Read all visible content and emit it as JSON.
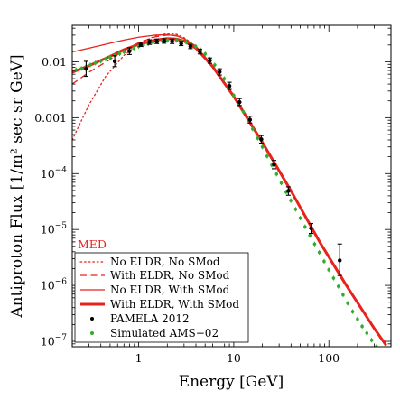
{
  "chart_data": {
    "type": "line",
    "xlabel": "Energy [GeV]",
    "ylabel": "Antiproton Flux [1/m² sec sr GeV]",
    "x_scale": "log",
    "y_scale": "log",
    "xlim": [
      0.2,
      450
    ],
    "ylim": [
      8e-08,
      0.045
    ],
    "x_ticks": [
      {
        "value": 1,
        "label": "1"
      },
      {
        "value": 10,
        "label": "10"
      },
      {
        "value": 100,
        "label": "100"
      }
    ],
    "y_ticks": [
      {
        "value": 1e-07,
        "base": "10",
        "exp": "−7"
      },
      {
        "value": 1e-06,
        "base": "10",
        "exp": "−6"
      },
      {
        "value": 1e-05,
        "base": "10",
        "exp": "−5"
      },
      {
        "value": 0.0001,
        "base": "10",
        "exp": "−4"
      },
      {
        "value": 0.001,
        "label": "0.001"
      },
      {
        "value": 0.01,
        "label": "0.01"
      }
    ],
    "annotation": {
      "text": "MED",
      "color": "#e8221d"
    },
    "series": [
      {
        "name": "No ELDR, No SMod",
        "style": "dotted",
        "width": 1.3,
        "color": "#e8221d",
        "points": [
          [
            0.2,
            0.0004
          ],
          [
            0.3,
            0.0017
          ],
          [
            0.45,
            0.0055
          ],
          [
            0.7,
            0.013
          ],
          [
            1.0,
            0.021
          ],
          [
            1.5,
            0.029
          ],
          [
            2.0,
            0.032
          ],
          [
            2.5,
            0.031
          ],
          [
            3.0,
            0.027
          ],
          [
            4.0,
            0.019
          ],
          [
            6.0,
            0.0085
          ],
          [
            10,
            0.0024
          ],
          [
            20,
            0.00036
          ],
          [
            40,
            4.9e-05
          ],
          [
            80,
            6e-06
          ],
          [
            150,
            1.05e-06
          ],
          [
            300,
            1.7e-07
          ],
          [
            400,
            8.5e-08
          ]
        ]
      },
      {
        "name": "With ELDR, No SMod",
        "style": "dashed",
        "width": 1.3,
        "color": "#e8221d",
        "points": [
          [
            0.2,
            0.004
          ],
          [
            0.3,
            0.0065
          ],
          [
            0.5,
            0.011
          ],
          [
            0.7,
            0.016
          ],
          [
            1.0,
            0.022
          ],
          [
            1.5,
            0.028
          ],
          [
            2.0,
            0.03
          ],
          [
            2.5,
            0.0295
          ],
          [
            3.0,
            0.026
          ],
          [
            4.0,
            0.0185
          ],
          [
            6.0,
            0.0085
          ],
          [
            10,
            0.0024
          ],
          [
            20,
            0.00036
          ],
          [
            40,
            4.9e-05
          ],
          [
            80,
            6e-06
          ],
          [
            150,
            1.05e-06
          ],
          [
            300,
            1.7e-07
          ],
          [
            400,
            8.5e-08
          ]
        ]
      },
      {
        "name": "No ELDR, With SMod",
        "style": "solid",
        "width": 1.3,
        "color": "#e8221d",
        "points": [
          [
            0.2,
            0.015
          ],
          [
            0.3,
            0.0175
          ],
          [
            0.5,
            0.0215
          ],
          [
            0.7,
            0.0245
          ],
          [
            1.0,
            0.0275
          ],
          [
            1.5,
            0.03
          ],
          [
            2.0,
            0.0305
          ],
          [
            2.5,
            0.029
          ],
          [
            3.0,
            0.026
          ],
          [
            4.0,
            0.019
          ],
          [
            6.0,
            0.0085
          ],
          [
            10,
            0.0024
          ],
          [
            20,
            0.00036
          ],
          [
            40,
            4.9e-05
          ],
          [
            80,
            6e-06
          ],
          [
            150,
            1.05e-06
          ],
          [
            300,
            1.7e-07
          ],
          [
            400,
            8.5e-08
          ]
        ]
      },
      {
        "name": "With ELDR, With SMod",
        "style": "solid",
        "width": 3,
        "color": "#e8221d",
        "points": [
          [
            0.2,
            0.0065
          ],
          [
            0.3,
            0.0085
          ],
          [
            0.5,
            0.0125
          ],
          [
            0.7,
            0.0165
          ],
          [
            1.0,
            0.0205
          ],
          [
            1.5,
            0.0245
          ],
          [
            2.0,
            0.026
          ],
          [
            2.5,
            0.0255
          ],
          [
            3.0,
            0.0235
          ],
          [
            4.0,
            0.0175
          ],
          [
            6.0,
            0.0082
          ],
          [
            10,
            0.0024
          ],
          [
            20,
            0.00036
          ],
          [
            40,
            4.9e-05
          ],
          [
            80,
            6e-06
          ],
          [
            150,
            1.05e-06
          ],
          [
            300,
            1.7e-07
          ],
          [
            400,
            8.5e-08
          ]
        ]
      },
      {
        "name": "Simulated AMS−02",
        "marker": "dot-errorbar",
        "color": "#2fae2b",
        "points": [
          [
            0.22,
            0.0072
          ],
          [
            0.25,
            0.0076
          ],
          [
            0.28,
            0.0082
          ],
          [
            0.31,
            0.0088
          ],
          [
            0.35,
            0.0095
          ],
          [
            0.4,
            0.0103
          ],
          [
            0.45,
            0.0112
          ],
          [
            0.5,
            0.0121
          ],
          [
            0.56,
            0.013
          ],
          [
            0.63,
            0.014
          ],
          [
            0.7,
            0.015
          ],
          [
            0.79,
            0.0162
          ],
          [
            0.89,
            0.0175
          ],
          [
            1.0,
            0.0188
          ],
          [
            1.12,
            0.02
          ],
          [
            1.26,
            0.021
          ],
          [
            1.41,
            0.0222
          ],
          [
            1.58,
            0.023
          ],
          [
            1.78,
            0.0238
          ],
          [
            2.0,
            0.0243
          ],
          [
            2.24,
            0.0244
          ],
          [
            2.51,
            0.0242
          ],
          [
            2.82,
            0.0235
          ],
          [
            3.16,
            0.0224
          ],
          [
            3.55,
            0.0208
          ],
          [
            3.98,
            0.0188
          ],
          [
            4.47,
            0.0164
          ],
          [
            5.01,
            0.0138
          ],
          [
            5.62,
            0.0112
          ],
          [
            6.31,
            0.0088
          ],
          [
            7.08,
            0.0067
          ],
          [
            7.94,
            0.005
          ],
          [
            8.91,
            0.0036
          ],
          [
            10.0,
            0.0025
          ],
          [
            11.2,
            0.0018
          ],
          [
            12.6,
            0.00128
          ],
          [
            14.1,
            0.0009
          ],
          [
            15.8,
            0.00063
          ],
          [
            17.8,
            0.00043
          ],
          [
            20.0,
            0.0003
          ],
          [
            22.4,
            0.000205
          ],
          [
            25.1,
            0.000142
          ],
          [
            28.2,
            9.8e-05
          ],
          [
            31.6,
            6.8e-05
          ],
          [
            35.5,
            4.7e-05
          ],
          [
            39.8,
            3.3e-05
          ],
          [
            44.7,
            2.3e-05
          ],
          [
            50.1,
            1.6e-05
          ],
          [
            56.2,
            1.12e-05
          ],
          [
            63.1,
            7.8e-06
          ],
          [
            70.8,
            5.5e-06
          ],
          [
            79.4,
            3.9e-06
          ],
          [
            89.1,
            2.7e-06
          ],
          [
            100,
            1.9e-06
          ],
          [
            112,
            1.35e-06
          ],
          [
            126,
            9.6e-07
          ],
          [
            141,
            6.8e-07
          ],
          [
            158,
            4.8e-07
          ],
          [
            178,
            3.4e-07
          ],
          [
            200,
            2.5e-07
          ],
          [
            224,
            1.85e-07
          ],
          [
            251,
            1.4e-07
          ],
          [
            282,
            1.05e-07
          ],
          [
            316,
            8e-08
          ]
        ]
      },
      {
        "name": "PAMELA 2012",
        "marker": "dot-errorbar",
        "color": "#000000",
        "points": [
          {
            "x": 0.28,
            "y": 0.0075,
            "lo": 0.0055,
            "hi": 0.0102
          },
          {
            "x": 0.56,
            "y": 0.0102,
            "lo": 0.0082,
            "hi": 0.0128
          },
          {
            "x": 0.8,
            "y": 0.0155,
            "lo": 0.0135,
            "hi": 0.0178
          },
          {
            "x": 1.05,
            "y": 0.0205,
            "lo": 0.0188,
            "hi": 0.0225
          },
          {
            "x": 1.3,
            "y": 0.0225,
            "lo": 0.0205,
            "hi": 0.0248
          },
          {
            "x": 1.55,
            "y": 0.0232,
            "lo": 0.0212,
            "hi": 0.0255
          },
          {
            "x": 1.85,
            "y": 0.0235,
            "lo": 0.0215,
            "hi": 0.0258
          },
          {
            "x": 2.25,
            "y": 0.0232,
            "lo": 0.0212,
            "hi": 0.0255
          },
          {
            "x": 2.8,
            "y": 0.0212,
            "lo": 0.0195,
            "hi": 0.0232
          },
          {
            "x": 3.5,
            "y": 0.0188,
            "lo": 0.0172,
            "hi": 0.0205
          },
          {
            "x": 4.4,
            "y": 0.0152,
            "lo": 0.0138,
            "hi": 0.0168
          },
          {
            "x": 5.6,
            "y": 0.0105,
            "lo": 0.0094,
            "hi": 0.0117
          },
          {
            "x": 7.1,
            "y": 0.0066,
            "lo": 0.0058,
            "hi": 0.0075
          },
          {
            "x": 9.0,
            "y": 0.0037,
            "lo": 0.0032,
            "hi": 0.0043
          },
          {
            "x": 11.5,
            "y": 0.0019,
            "lo": 0.00165,
            "hi": 0.0022
          },
          {
            "x": 14.8,
            "y": 0.00092,
            "lo": 0.0008,
            "hi": 0.00106
          },
          {
            "x": 19.5,
            "y": 0.00041,
            "lo": 0.00035,
            "hi": 0.00048
          },
          {
            "x": 26.5,
            "y": 0.000145,
            "lo": 0.000122,
            "hi": 0.000172
          },
          {
            "x": 37.5,
            "y": 4.9e-05,
            "lo": 4.1e-05,
            "hi": 5.8e-05
          },
          {
            "x": 65,
            "y": 1.05e-05,
            "lo": 8.5e-06,
            "hi": 1.28e-05
          },
          {
            "x": 130,
            "y": 2.8e-06,
            "lo": 1.5e-06,
            "hi": 5.5e-06
          }
        ]
      }
    ],
    "legend": {
      "position": "bottom-left",
      "entries": [
        {
          "label": "No ELDR, No SMod",
          "symbol": "dotted"
        },
        {
          "label": "With ELDR, No SMod",
          "symbol": "dashed"
        },
        {
          "label": "No ELDR, With SMod",
          "symbol": "solid-thin"
        },
        {
          "label": "With ELDR, With SMod",
          "symbol": "solid-thick"
        },
        {
          "label": "PAMELA 2012",
          "symbol": "black-dot"
        },
        {
          "label": "Simulated AMS−02",
          "symbol": "green-dot"
        }
      ]
    },
    "grid": false,
    "colors": {
      "theory": "#e8221d",
      "pamela": "#000000",
      "ams": "#2fae2b"
    }
  }
}
